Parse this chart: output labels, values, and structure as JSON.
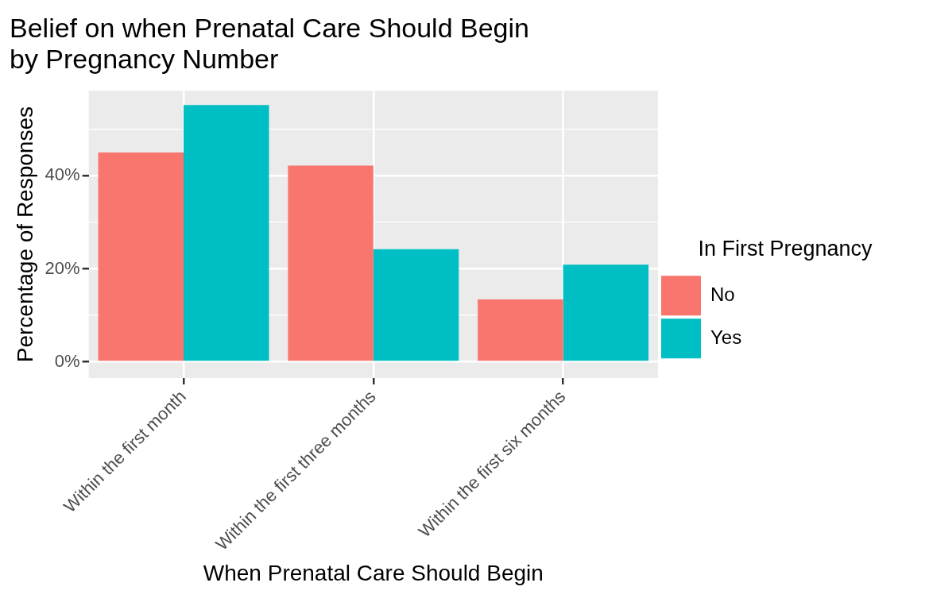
{
  "chart_data": {
    "type": "bar",
    "title": "Belief on when Prenatal Care Should Begin\nby Pregnancy Number",
    "xlabel": "When Prenatal Care Should Begin",
    "ylabel": "Percentage of Responses",
    "legend_title": "In First Pregnancy",
    "categories": [
      "Within the first month",
      "Within the first three months",
      "Within the first six months"
    ],
    "series": [
      {
        "name": "No",
        "color": "#f8766d",
        "values": [
          45.0,
          42.2,
          13.4
        ]
      },
      {
        "name": "Yes",
        "color": "#00bfc4",
        "values": [
          55.2,
          24.2,
          20.9
        ]
      }
    ],
    "ylim": [
      -3.5,
      58.3
    ],
    "yticks": [
      {
        "value": 0,
        "label": "0%"
      },
      {
        "value": 10,
        "label": null
      },
      {
        "value": 20,
        "label": "20%"
      },
      {
        "value": 30,
        "label": null
      },
      {
        "value": 40,
        "label": "40%"
      },
      {
        "value": 50,
        "label": null
      }
    ],
    "grid": true,
    "legend": "right"
  }
}
